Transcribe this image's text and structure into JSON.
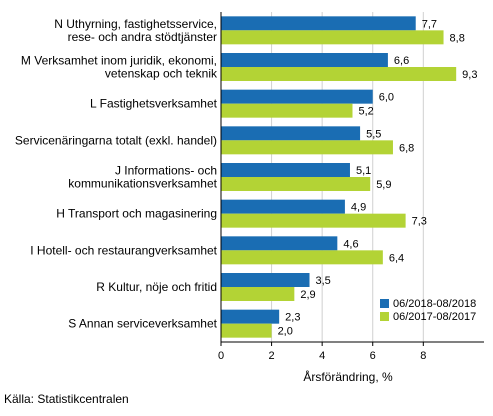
{
  "chart_data": {
    "type": "bar",
    "orientation": "horizontal",
    "categories": [
      [
        "N Uthyrning, fastighetsservice,",
        "rese- och andra stödtjänster"
      ],
      [
        "M Verksamhet inom juridik, ekonomi,",
        "vetenskap och teknik"
      ],
      [
        "L Fastighetsverksamhet"
      ],
      [
        "Servicenäringarna totalt (exkl. handel)"
      ],
      [
        "J Informations- och",
        "kommunikationsverksamhet"
      ],
      [
        "H Transport och magasinering"
      ],
      [
        "I Hotell- och restaurangverksamhet"
      ],
      [
        "R Kultur, nöje och fritid"
      ],
      [
        "S Annan serviceverksamhet"
      ]
    ],
    "series": [
      {
        "name": "06/2018-08/2018",
        "color": "#1a6db3",
        "values": [
          7.7,
          6.6,
          6.0,
          5.5,
          5.1,
          4.9,
          4.6,
          3.5,
          2.3
        ]
      },
      {
        "name": "06/2017-08/2017",
        "color": "#b3d335",
        "values": [
          8.8,
          9.3,
          5.2,
          6.8,
          5.9,
          7.3,
          6.4,
          2.9,
          2.0
        ]
      }
    ],
    "xlabel": "Årsförändring, %",
    "xticks": [
      "0",
      "2",
      "4",
      "6",
      "8"
    ],
    "xlim": [
      0,
      10.4
    ],
    "grid": true,
    "legend": "bottom-right"
  },
  "source": "Källa: Statistikcentralen"
}
